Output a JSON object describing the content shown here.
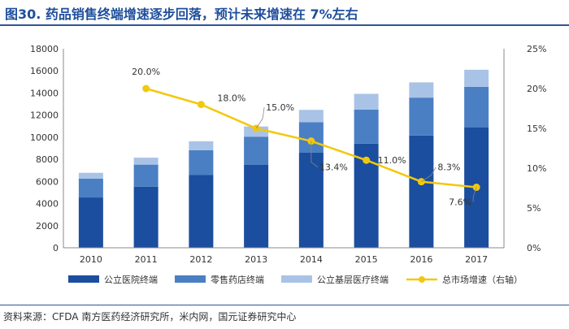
{
  "title": "图30. 药品销售终端增速逐步回落，预计未来增速在 7%左右",
  "source": "资料来源：CFDA 南方医药经济研究所，米内网，国元证券研究中心",
  "chart_data": {
    "type": "bar",
    "stacked": true,
    "categories": [
      "2010",
      "2011",
      "2012",
      "2013",
      "2014",
      "2015",
      "2016",
      "2017"
    ],
    "series": [
      {
        "name": "公立医院终端",
        "values": [
          4550,
          5520,
          6600,
          7520,
          8600,
          9420,
          10150,
          10900
        ],
        "color": "#1b4e9e"
      },
      {
        "name": "零售药店终端",
        "values": [
          1700,
          2000,
          2230,
          2530,
          2760,
          3080,
          3430,
          3650
        ],
        "color": "#4a7fc3"
      },
      {
        "name": "公立基层医疗终端",
        "values": [
          530,
          630,
          800,
          920,
          1110,
          1420,
          1380,
          1550
        ],
        "color": "#a9c3e6"
      }
    ],
    "line": {
      "name": "总市场增速（右轴）",
      "values": [
        null,
        20.0,
        18.0,
        15.0,
        13.4,
        11.0,
        8.3,
        7.6
      ],
      "labels": [
        "",
        "20.0%",
        "18.0%",
        "15.0%",
        "13.4%",
        "11.0%",
        "8.3%",
        "7.6%"
      ],
      "color": "#f2c80f"
    },
    "yleft": {
      "min": 0,
      "max": 18000,
      "step": 2000
    },
    "yright": {
      "min": 0,
      "max": 25,
      "step": 5,
      "unit": "%"
    },
    "legend": "bottom"
  }
}
